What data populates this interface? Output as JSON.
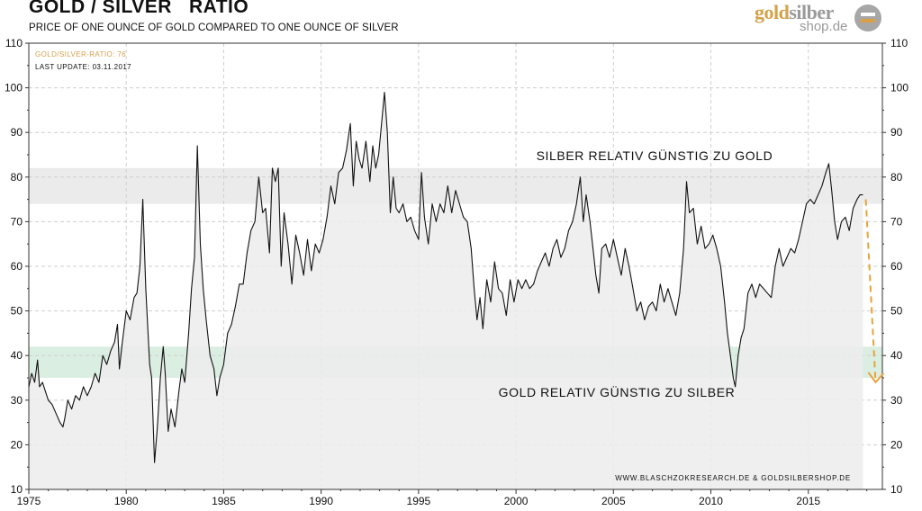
{
  "header": {
    "title": "GOLD / SILVER   RATIO",
    "subtitle": "PRICE OF ONE OUNCE OF GOLD COMPARED TO ONE OUNCE OF SILVER"
  },
  "logo": {
    "word_gold": "gold",
    "word_silber": "silber",
    "sub": "shop.de"
  },
  "legend": {
    "series": "GOLD/SILVER-RATIO: 76",
    "update": "LAST UPDATE: 03.11.2017"
  },
  "bands": {
    "upper": {
      "label": "SILBER RELATIV GÜNSTIG ZU GOLD",
      "range": [
        74,
        82
      ],
      "color": "#ebebeb"
    },
    "lower": {
      "label": "GOLD RELATIV GÜNSTIG ZU SILBER",
      "range": [
        35,
        42
      ],
      "color": "#dbeee2"
    }
  },
  "credit": "WWW.BLASCHZOKRESEARCH.DE  &  GOLDSILBERSHOP.DE",
  "colors": {
    "line": "#111111",
    "area": "#ececec",
    "grid": "#cfcfcf",
    "arrow": "#e8a33b"
  },
  "chart_data": {
    "type": "line",
    "title": "GOLD / SILVER   RATIO",
    "xlabel": "",
    "ylabel": "",
    "xlim": [
      1975,
      2018.8
    ],
    "ylim": [
      10,
      110
    ],
    "x_ticks": [
      1975,
      1980,
      1985,
      1990,
      1995,
      2000,
      2005,
      2010,
      2015
    ],
    "y_ticks": [
      10,
      20,
      30,
      40,
      50,
      60,
      70,
      80,
      90,
      100,
      110
    ],
    "grid": true,
    "series": [
      {
        "name": "GOLD/SILVER-RATIO",
        "points": [
          [
            1975.0,
            33
          ],
          [
            1975.15,
            36
          ],
          [
            1975.3,
            34
          ],
          [
            1975.45,
            39
          ],
          [
            1975.55,
            33
          ],
          [
            1975.7,
            34
          ],
          [
            1975.85,
            32
          ],
          [
            1976.0,
            30
          ],
          [
            1976.2,
            29
          ],
          [
            1976.4,
            27
          ],
          [
            1976.6,
            25
          ],
          [
            1976.75,
            24
          ],
          [
            1976.85,
            26
          ],
          [
            1977.0,
            30
          ],
          [
            1977.2,
            28
          ],
          [
            1977.4,
            31
          ],
          [
            1977.6,
            30
          ],
          [
            1977.8,
            33
          ],
          [
            1978.0,
            31
          ],
          [
            1978.2,
            33
          ],
          [
            1978.4,
            36
          ],
          [
            1978.6,
            34
          ],
          [
            1978.8,
            40
          ],
          [
            1979.0,
            38
          ],
          [
            1979.2,
            41
          ],
          [
            1979.4,
            43
          ],
          [
            1979.55,
            47
          ],
          [
            1979.65,
            37
          ],
          [
            1979.8,
            43
          ],
          [
            1980.0,
            50
          ],
          [
            1980.2,
            48
          ],
          [
            1980.4,
            53
          ],
          [
            1980.55,
            54
          ],
          [
            1980.7,
            60
          ],
          [
            1980.85,
            75
          ],
          [
            1981.0,
            55
          ],
          [
            1981.2,
            38
          ],
          [
            1981.3,
            35
          ],
          [
            1981.45,
            16
          ],
          [
            1981.6,
            24
          ],
          [
            1981.75,
            35
          ],
          [
            1981.9,
            42
          ],
          [
            1982.0,
            36
          ],
          [
            1982.15,
            23
          ],
          [
            1982.3,
            28
          ],
          [
            1982.5,
            24
          ],
          [
            1982.7,
            32
          ],
          [
            1982.85,
            37
          ],
          [
            1983.0,
            34
          ],
          [
            1983.2,
            45
          ],
          [
            1983.35,
            55
          ],
          [
            1983.5,
            62
          ],
          [
            1983.65,
            87
          ],
          [
            1983.8,
            65
          ],
          [
            1983.95,
            55
          ],
          [
            1984.1,
            48
          ],
          [
            1984.3,
            40
          ],
          [
            1984.5,
            37
          ],
          [
            1984.65,
            31
          ],
          [
            1984.8,
            35
          ],
          [
            1985.0,
            38
          ],
          [
            1985.2,
            45
          ],
          [
            1985.4,
            47
          ],
          [
            1985.6,
            51
          ],
          [
            1985.8,
            56
          ],
          [
            1986.0,
            56
          ],
          [
            1986.2,
            63
          ],
          [
            1986.4,
            68
          ],
          [
            1986.6,
            70
          ],
          [
            1986.8,
            80
          ],
          [
            1987.0,
            72
          ],
          [
            1987.15,
            73
          ],
          [
            1987.35,
            63
          ],
          [
            1987.5,
            82
          ],
          [
            1987.65,
            79
          ],
          [
            1987.8,
            82
          ],
          [
            1987.95,
            60
          ],
          [
            1988.1,
            72
          ],
          [
            1988.3,
            65
          ],
          [
            1988.5,
            56
          ],
          [
            1988.7,
            67
          ],
          [
            1988.9,
            63
          ],
          [
            1989.1,
            58
          ],
          [
            1989.3,
            66
          ],
          [
            1989.5,
            59
          ],
          [
            1989.7,
            65
          ],
          [
            1989.9,
            63
          ],
          [
            1990.1,
            66
          ],
          [
            1990.3,
            71
          ],
          [
            1990.5,
            78
          ],
          [
            1990.7,
            74
          ],
          [
            1990.9,
            81
          ],
          [
            1991.1,
            82
          ],
          [
            1991.3,
            86
          ],
          [
            1991.5,
            92
          ],
          [
            1991.65,
            78
          ],
          [
            1991.8,
            88
          ],
          [
            1991.95,
            84
          ],
          [
            1992.1,
            82
          ],
          [
            1992.3,
            88
          ],
          [
            1992.5,
            79
          ],
          [
            1992.65,
            87
          ],
          [
            1992.8,
            82
          ],
          [
            1992.95,
            85
          ],
          [
            1993.1,
            92
          ],
          [
            1993.25,
            99
          ],
          [
            1993.4,
            90
          ],
          [
            1993.55,
            72
          ],
          [
            1993.7,
            80
          ],
          [
            1993.85,
            73
          ],
          [
            1994.0,
            72
          ],
          [
            1994.2,
            74
          ],
          [
            1994.4,
            70
          ],
          [
            1994.6,
            71
          ],
          [
            1994.8,
            68
          ],
          [
            1995.0,
            66
          ],
          [
            1995.15,
            81
          ],
          [
            1995.3,
            71
          ],
          [
            1995.5,
            65
          ],
          [
            1995.7,
            74
          ],
          [
            1995.9,
            70
          ],
          [
            1996.1,
            74
          ],
          [
            1996.3,
            72
          ],
          [
            1996.5,
            78
          ],
          [
            1996.7,
            72
          ],
          [
            1996.9,
            77
          ],
          [
            1997.1,
            74
          ],
          [
            1997.3,
            71
          ],
          [
            1997.5,
            70
          ],
          [
            1997.7,
            64
          ],
          [
            1997.85,
            55
          ],
          [
            1998.0,
            48
          ],
          [
            1998.15,
            53
          ],
          [
            1998.3,
            46
          ],
          [
            1998.5,
            57
          ],
          [
            1998.7,
            52
          ],
          [
            1998.9,
            61
          ],
          [
            1999.1,
            55
          ],
          [
            1999.3,
            54
          ],
          [
            1999.5,
            49
          ],
          [
            1999.7,
            57
          ],
          [
            1999.9,
            52
          ],
          [
            2000.1,
            57
          ],
          [
            2000.3,
            55
          ],
          [
            2000.5,
            57
          ],
          [
            2000.7,
            55
          ],
          [
            2000.9,
            56
          ],
          [
            2001.1,
            59
          ],
          [
            2001.3,
            61
          ],
          [
            2001.5,
            63
          ],
          [
            2001.7,
            60
          ],
          [
            2001.9,
            64
          ],
          [
            2002.1,
            66
          ],
          [
            2002.3,
            62
          ],
          [
            2002.5,
            64
          ],
          [
            2002.7,
            68
          ],
          [
            2002.9,
            70
          ],
          [
            2003.1,
            74
          ],
          [
            2003.3,
            80
          ],
          [
            2003.45,
            70
          ],
          [
            2003.6,
            76
          ],
          [
            2003.8,
            70
          ],
          [
            2003.95,
            64
          ],
          [
            2004.1,
            58
          ],
          [
            2004.25,
            54
          ],
          [
            2004.4,
            64
          ],
          [
            2004.6,
            65
          ],
          [
            2004.8,
            62
          ],
          [
            2005.0,
            66
          ],
          [
            2005.2,
            62
          ],
          [
            2005.4,
            58
          ],
          [
            2005.6,
            64
          ],
          [
            2005.8,
            60
          ],
          [
            2006.0,
            55
          ],
          [
            2006.2,
            50
          ],
          [
            2006.4,
            52
          ],
          [
            2006.6,
            48
          ],
          [
            2006.8,
            51
          ],
          [
            2007.0,
            52
          ],
          [
            2007.2,
            50
          ],
          [
            2007.4,
            56
          ],
          [
            2007.6,
            52
          ],
          [
            2007.8,
            55
          ],
          [
            2008.0,
            52
          ],
          [
            2008.2,
            49
          ],
          [
            2008.4,
            54
          ],
          [
            2008.6,
            64
          ],
          [
            2008.75,
            79
          ],
          [
            2008.9,
            72
          ],
          [
            2009.1,
            73
          ],
          [
            2009.3,
            65
          ],
          [
            2009.5,
            69
          ],
          [
            2009.7,
            64
          ],
          [
            2009.9,
            65
          ],
          [
            2010.1,
            67
          ],
          [
            2010.3,
            64
          ],
          [
            2010.5,
            60
          ],
          [
            2010.7,
            52
          ],
          [
            2010.85,
            45
          ],
          [
            2011.0,
            40
          ],
          [
            2011.15,
            35
          ],
          [
            2011.25,
            33
          ],
          [
            2011.4,
            40
          ],
          [
            2011.55,
            44
          ],
          [
            2011.7,
            46
          ],
          [
            2011.9,
            54
          ],
          [
            2012.1,
            56
          ],
          [
            2012.3,
            53
          ],
          [
            2012.5,
            56
          ],
          [
            2012.7,
            55
          ],
          [
            2012.9,
            54
          ],
          [
            2013.1,
            53
          ],
          [
            2013.3,
            60
          ],
          [
            2013.5,
            64
          ],
          [
            2013.7,
            60
          ],
          [
            2013.9,
            62
          ],
          [
            2014.1,
            64
          ],
          [
            2014.3,
            63
          ],
          [
            2014.5,
            66
          ],
          [
            2014.7,
            70
          ],
          [
            2014.9,
            74
          ],
          [
            2015.1,
            75
          ],
          [
            2015.3,
            74
          ],
          [
            2015.5,
            76
          ],
          [
            2015.7,
            78
          ],
          [
            2015.9,
            81
          ],
          [
            2016.05,
            83
          ],
          [
            2016.2,
            77
          ],
          [
            2016.35,
            70
          ],
          [
            2016.5,
            66
          ],
          [
            2016.7,
            70
          ],
          [
            2016.9,
            71
          ],
          [
            2017.1,
            68
          ],
          [
            2017.3,
            73
          ],
          [
            2017.5,
            75
          ],
          [
            2017.65,
            76
          ],
          [
            2017.8,
            76
          ]
        ]
      }
    ],
    "bands": [
      [
        74,
        82
      ],
      [
        35,
        42
      ]
    ]
  }
}
